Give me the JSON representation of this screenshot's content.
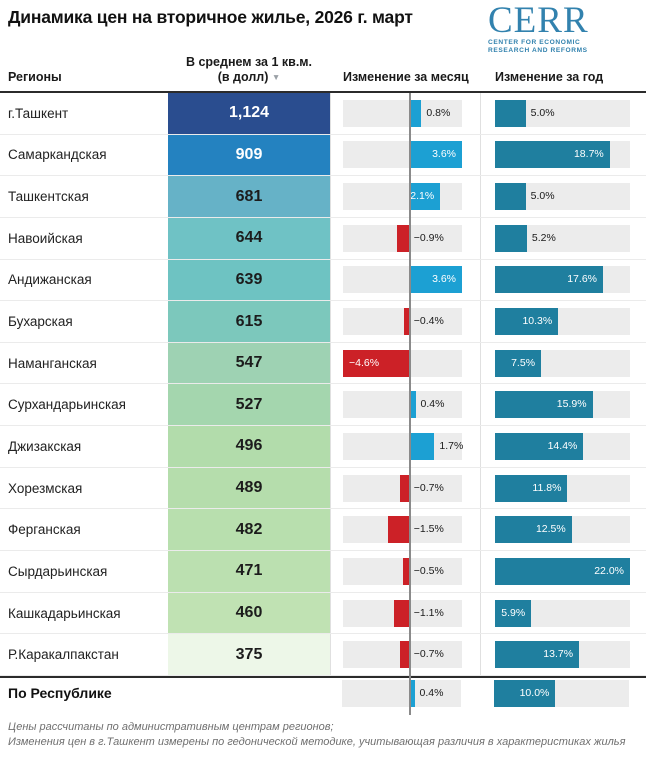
{
  "title": "Динамика цен на вторичное жилье, 2026 г. март",
  "logo": {
    "text": "CERR",
    "subtitle_line1": "CENTER FOR ECONOMIC",
    "subtitle_line2": "RESEARCH AND REFORMS",
    "color": "#3282ae"
  },
  "columns": {
    "region": "Регионы",
    "price": "В среднем за 1 кв.м. (в долл)",
    "sort_icon": "▼",
    "month": "Изменение за месяц",
    "year": "Изменение за год"
  },
  "chart_data": {
    "type": "table",
    "title": "Динамика цен на вторичное жилье, 2026 г. март",
    "columns": [
      "Регионы",
      "В среднем за 1 кв.м. (в долл)",
      "Изменение за месяц",
      "Изменение за год"
    ],
    "month_axis": {
      "min": -4.6,
      "max": 3.6
    },
    "year_axis": {
      "min": 0,
      "max": 22.0
    },
    "colors": {
      "positive_month": "#1ca0d3",
      "negative": "#cc2127",
      "year_bar": "#1f7f9f",
      "track": "#ececec",
      "zero_line": "#8a8a8a"
    },
    "rows": [
      {
        "region": "г.Ташкент",
        "price": "1,124",
        "price_color": "#2a4d8f",
        "price_text_color": "#ffffff",
        "month_change": 0.8,
        "month_label": "0.8%",
        "year_change": 5.0,
        "year_label": "5.0%"
      },
      {
        "region": "Самаркандская",
        "price": "909",
        "price_color": "#2482c0",
        "price_text_color": "#ffffff",
        "month_change": 3.6,
        "month_label": "3.6%",
        "year_change": 18.7,
        "year_label": "18.7%"
      },
      {
        "region": "Ташкентская",
        "price": "681",
        "price_color": "#66b2c7",
        "price_text_color": "#1c1c1c",
        "month_change": 2.1,
        "month_label": "2.1%",
        "year_change": 5.0,
        "year_label": "5.0%"
      },
      {
        "region": "Навоийская",
        "price": "644",
        "price_color": "#6fc2c5",
        "price_text_color": "#1c1c1c",
        "month_change": -0.9,
        "month_label": "−0.9%",
        "year_change": 5.2,
        "year_label": "5.2%"
      },
      {
        "region": "Андижанская",
        "price": "639",
        "price_color": "#6ec3c2",
        "price_text_color": "#1c1c1c",
        "month_change": 3.6,
        "month_label": "3.6%",
        "year_change": 17.6,
        "year_label": "17.6%"
      },
      {
        "region": "Бухарская",
        "price": "615",
        "price_color": "#7cc8bc",
        "price_text_color": "#1c1c1c",
        "month_change": -0.4,
        "month_label": "−0.4%",
        "year_change": 10.3,
        "year_label": "10.3%"
      },
      {
        "region": "Наманганская",
        "price": "547",
        "price_color": "#9ed2b3",
        "price_text_color": "#1c1c1c",
        "month_change": -4.6,
        "month_label": "−4.6%",
        "year_change": 7.5,
        "year_label": "7.5%"
      },
      {
        "region": "Сурхандарьинская",
        "price": "527",
        "price_color": "#a4d6ae",
        "price_text_color": "#1c1c1c",
        "month_change": 0.4,
        "month_label": "0.4%",
        "year_change": 15.9,
        "year_label": "15.9%"
      },
      {
        "region": "Джизакская",
        "price": "496",
        "price_color": "#b2dcab",
        "price_text_color": "#1c1c1c",
        "month_change": 1.7,
        "month_label": "1.7%",
        "year_change": 14.4,
        "year_label": "14.4%"
      },
      {
        "region": "Хорезмская",
        "price": "489",
        "price_color": "#b5ddac",
        "price_text_color": "#1c1c1c",
        "month_change": -0.7,
        "month_label": "−0.7%",
        "year_change": 11.8,
        "year_label": "11.8%"
      },
      {
        "region": "Ферганская",
        "price": "482",
        "price_color": "#b8dfae",
        "price_text_color": "#1c1c1c",
        "month_change": -1.5,
        "month_label": "−1.5%",
        "year_change": 12.5,
        "year_label": "12.5%"
      },
      {
        "region": "Сырдарьинская",
        "price": "471",
        "price_color": "#bbe0b0",
        "price_text_color": "#1c1c1c",
        "month_change": -0.5,
        "month_label": "−0.5%",
        "year_change": 22.0,
        "year_label": "22.0%"
      },
      {
        "region": "Кашкадарьинская",
        "price": "460",
        "price_color": "#c0e2b3",
        "price_text_color": "#1c1c1c",
        "month_change": -1.1,
        "month_label": "−1.1%",
        "year_change": 5.9,
        "year_label": "5.9%"
      },
      {
        "region": "Р.Каракалпакстан",
        "price": "375",
        "price_color": "#edf7e8",
        "price_text_color": "#1c1c1c",
        "month_change": -0.7,
        "month_label": "−0.7%",
        "year_change": 13.7,
        "year_label": "13.7%"
      }
    ],
    "summary": {
      "region": "По Республике",
      "month_change": 0.4,
      "month_label": "0.4%",
      "year_change": 10.0,
      "year_label": "10.0%"
    }
  },
  "footnotes": [
    "Цены рассчитаны по административным центрам регионов;",
    "Изменения цен в г.Ташкент измерены по гедонической методике, учитывающая различия в характеристиках жилья"
  ]
}
